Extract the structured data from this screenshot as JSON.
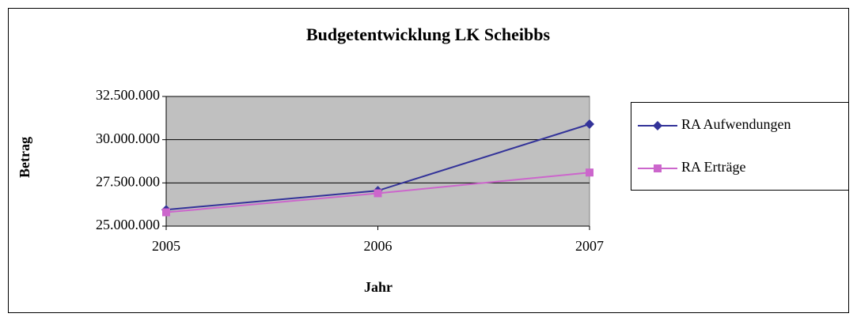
{
  "chart_data": {
    "type": "line",
    "title": "Budgetentwicklung LK Scheibbs",
    "xlabel": "Jahr",
    "ylabel": "Betrag",
    "categories": [
      "2005",
      "2006",
      "2007"
    ],
    "series": [
      {
        "name": "RA Aufwendungen",
        "color": "#333399",
        "marker": "diamond",
        "values": [
          25950000,
          27050000,
          30900000
        ]
      },
      {
        "name": "RA Erträge",
        "color": "#cc66cc",
        "marker": "square",
        "values": [
          25800000,
          26900000,
          28100000
        ]
      }
    ],
    "ylim": [
      25000000,
      32500000
    ],
    "yticks": [
      {
        "value": 25000000,
        "label": "25.000.000"
      },
      {
        "value": 27500000,
        "label": "27.500.000"
      },
      {
        "value": 30000000,
        "label": "30.000.000"
      },
      {
        "value": 32500000,
        "label": "32.500.000"
      }
    ],
    "grid": true,
    "legend": "right"
  }
}
